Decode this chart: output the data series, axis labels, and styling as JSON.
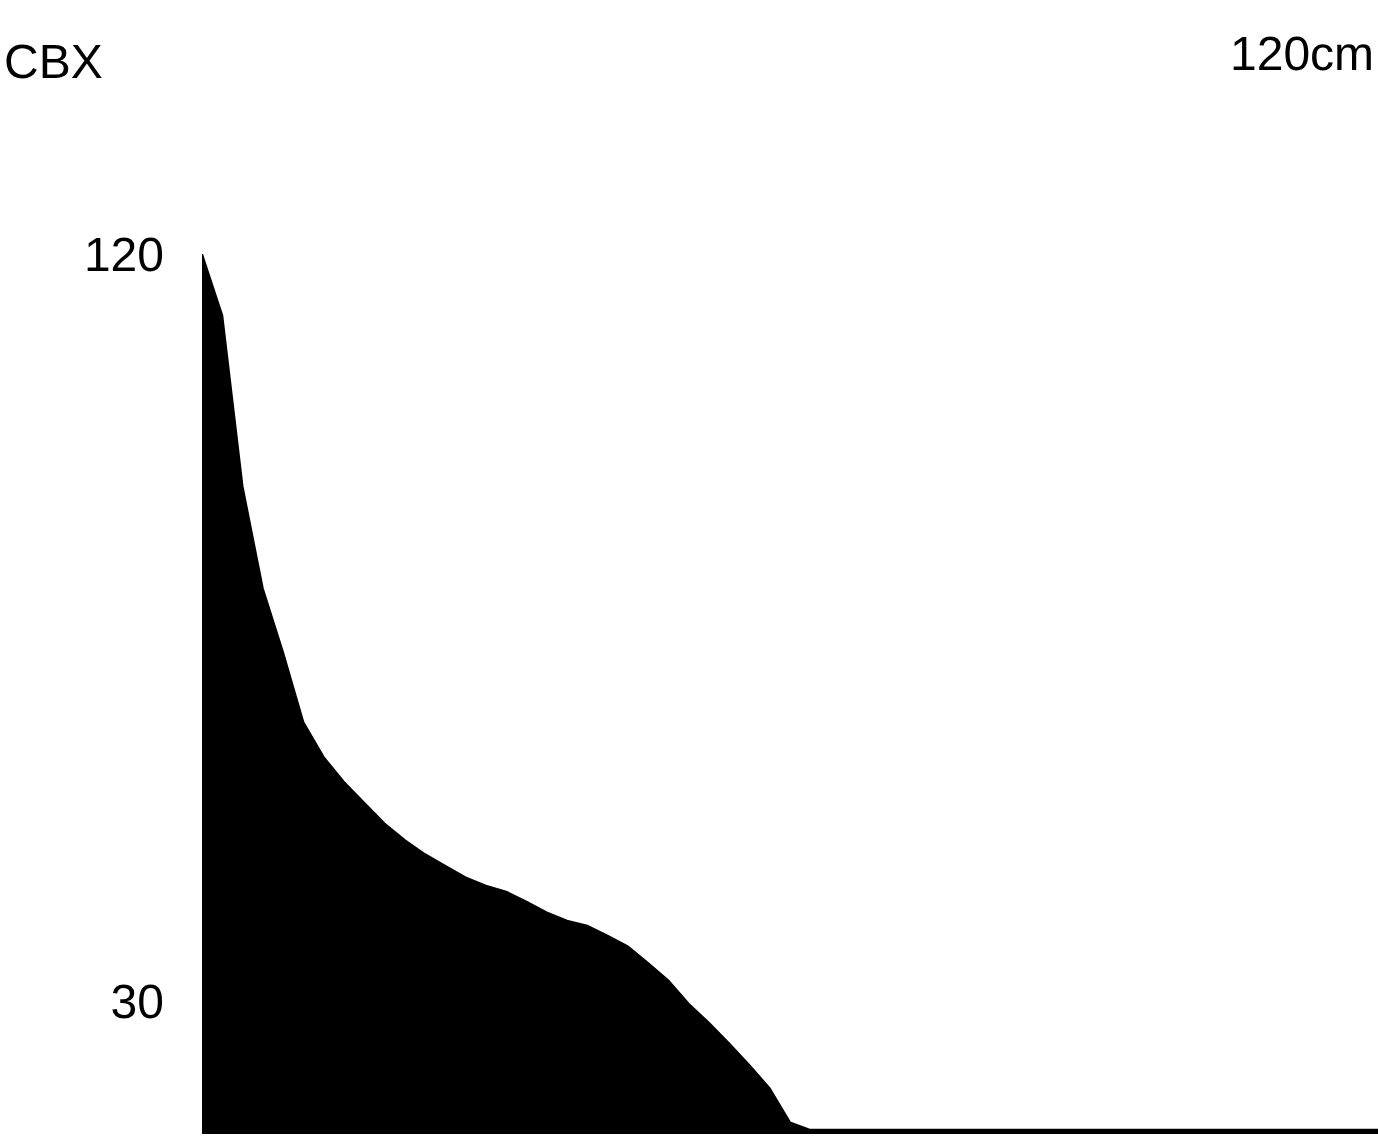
{
  "chart_data": {
    "type": "area",
    "ylabel": "CBX",
    "annotations": [
      "120cm"
    ],
    "categories": [
      null,
      null,
      null,
      null,
      null,
      null,
      null,
      null,
      null,
      null,
      null,
      null,
      null,
      null,
      null,
      null,
      null,
      null,
      null,
      null,
      null,
      null,
      null,
      null,
      null,
      null,
      null,
      null,
      null,
      null,
      null,
      null,
      null,
      null,
      null,
      null,
      null,
      null,
      null,
      null,
      null,
      null,
      null,
      null,
      null,
      null,
      null,
      null,
      null,
      null,
      null,
      null,
      null,
      null,
      null,
      null,
      null,
      null,
      null
    ],
    "series": [
      {
        "color": "#000000",
        "values": [
          120,
          112.6,
          92.0,
          79.7,
          72.0,
          63.6,
          59.4,
          56.4,
          53.9,
          51.4,
          49.4,
          47.7,
          46.3,
          44.9,
          43.9,
          43.2,
          42.0,
          40.7,
          39.7,
          39.1,
          37.9,
          36.6,
          34.6,
          32.5,
          29.7,
          27.4,
          24.9,
          22.3,
          19.5,
          15.4,
          14.5,
          14.5,
          14.5,
          14.5,
          14.5,
          14.5,
          14.5,
          14.5,
          14.5,
          14.5,
          14.5,
          14.5,
          14.5,
          14.5,
          14.5,
          14.5,
          14.5,
          14.5,
          14.5,
          14.5,
          14.5,
          14.5,
          14.5,
          14.5,
          14.5,
          14.5,
          14.5,
          14.5,
          14.5
        ]
      }
    ],
    "ylim": [
      14,
      120
    ],
    "yticks": [
      30,
      120
    ],
    "tick_labels": "y"
  }
}
